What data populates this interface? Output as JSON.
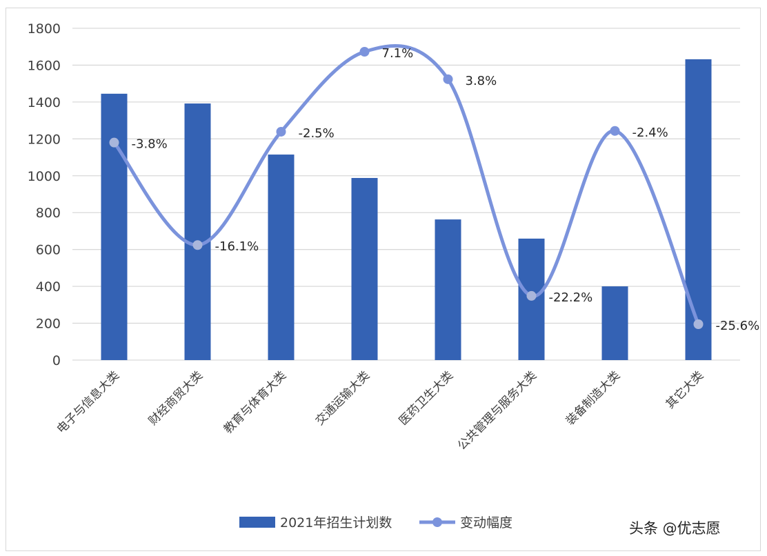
{
  "chart_data": {
    "type": "bar",
    "title": "",
    "xlabel": "",
    "ylabel": "",
    "ylim": [
      0,
      1800
    ],
    "yticks": [
      0,
      200,
      400,
      600,
      800,
      1000,
      1200,
      1400,
      1600,
      1800
    ],
    "grid": true,
    "legend_position": "bottom",
    "categories": [
      "电子与信息大类",
      "财经商贸大类",
      "教育与体育大类",
      "交通运输大类",
      "医药卫生大类",
      "公共管理与服务大类",
      "装备制造大类",
      "其它大类"
    ],
    "series": [
      {
        "name": "2021年招生计划数",
        "type": "bar",
        "axis": "primary",
        "color": "#3462b4",
        "values": [
          1445,
          1392,
          1115,
          988,
          763,
          659,
          400,
          1632
        ]
      },
      {
        "name": "变动幅度",
        "type": "line",
        "axis": "secondary",
        "color": "#7b93dc",
        "smooth": true,
        "values": [
          -3.8,
          -16.1,
          -2.5,
          7.1,
          3.8,
          -22.2,
          -2.4,
          -25.6
        ],
        "labels": [
          "-3.8%",
          "-16.1%",
          "-2.5%",
          "7.1%",
          "3.8%",
          "-22.2%",
          "-2.4%",
          "-25.6%"
        ]
      }
    ]
  },
  "legend": {
    "bar_label": "2021年招生计划数",
    "line_label": "变动幅度"
  },
  "credit": "头条 @优志愿"
}
